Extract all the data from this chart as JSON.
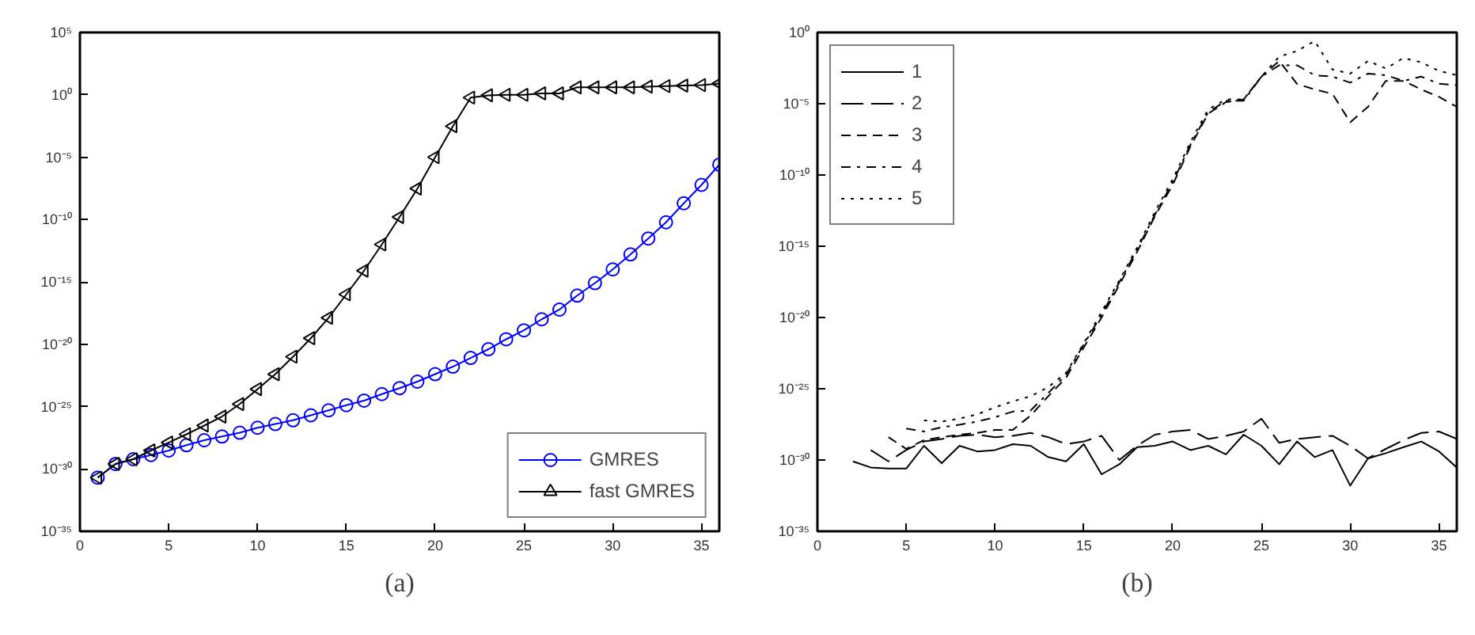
{
  "chart_data": [
    {
      "type": "line",
      "xlabel": "(a)",
      "log": "y",
      "grid": false,
      "legend": "bottom right",
      "xlim": [
        0,
        36
      ],
      "ylim": [
        1e-35,
        100000
      ],
      "xticks": [
        0,
        5,
        10,
        15,
        20,
        25,
        30,
        35
      ],
      "yticks": [
        {
          "value": 1e-35,
          "label": "10⁻³⁵"
        },
        {
          "value": 1e-30,
          "label": "10⁻³⁰"
        },
        {
          "value": 1e-25,
          "label": "10⁻²⁵"
        },
        {
          "value": 1e-20,
          "label": "10⁻²⁰"
        },
        {
          "value": 1e-15,
          "label": "10⁻¹⁵"
        },
        {
          "value": 1e-10,
          "label": "10⁻¹⁰"
        },
        {
          "value": 1e-05,
          "label": "10⁻⁵"
        },
        {
          "value": 1,
          "label": "10⁰"
        },
        {
          "value": 100000,
          "label": "10⁵"
        }
      ],
      "x": [
        1,
        2,
        3,
        4,
        5,
        6,
        7,
        8,
        9,
        10,
        11,
        12,
        13,
        14,
        15,
        16,
        17,
        18,
        19,
        20,
        21,
        22,
        23,
        24,
        25,
        26,
        27,
        28,
        29,
        30,
        31,
        32,
        33,
        34,
        35,
        36
      ],
      "series": [
        {
          "name": "GMRES",
          "color": "#0000ff",
          "marker": "circle",
          "line_style": "solid",
          "values": [
            2e-31,
            2.5e-30,
            6e-30,
            1.3e-29,
            3e-29,
            8e-29,
            2e-28,
            4e-28,
            8e-28,
            2e-27,
            4e-27,
            8e-27,
            2e-26,
            5e-26,
            1.3e-25,
            3e-25,
            1e-24,
            3e-24,
            1e-23,
            4e-23,
            1.6e-22,
            8e-22,
            4e-21,
            2.5e-20,
            1.3e-19,
            1e-18,
            6e-18,
            8e-17,
            8e-16,
            1e-14,
            1.6e-13,
            3e-12,
            6e-11,
            2e-09,
            6e-08,
            2.5e-06
          ]
        },
        {
          "name": "fast GMRES",
          "color": "#000000",
          "marker": "triangle",
          "line_style": "solid",
          "values": [
            2e-31,
            2.5e-30,
            6e-30,
            3e-29,
            1.3e-28,
            6e-28,
            3e-27,
            1.6e-26,
            1.6e-25,
            2.5e-24,
            4e-23,
            1e-21,
            3e-20,
            1.3e-18,
            1e-16,
            8e-15,
            1e-12,
            1.6e-10,
            3e-08,
            1e-05,
            0.003,
            0.6,
            0.9,
            1,
            1,
            1.3,
            1.3,
            4,
            4,
            4,
            4,
            4.5,
            5,
            5.5,
            6,
            8
          ]
        }
      ]
    },
    {
      "type": "line",
      "xlabel": "(b)",
      "log": "y",
      "grid": false,
      "legend": "top left",
      "xlim": [
        0,
        36
      ],
      "ylim": [
        1e-35,
        1
      ],
      "xticks": [
        0,
        5,
        10,
        15,
        20,
        25,
        30,
        35
      ],
      "yticks": [
        {
          "value": 1e-35,
          "label": "10⁻³⁵"
        },
        {
          "value": 1e-30,
          "label": "10⁻³⁰"
        },
        {
          "value": 1e-25,
          "label": "10⁻²⁵"
        },
        {
          "value": 1e-20,
          "label": "10⁻²⁰"
        },
        {
          "value": 1e-15,
          "label": "10⁻¹⁵"
        },
        {
          "value": 1e-10,
          "label": "10⁻¹⁰"
        },
        {
          "value": 1e-05,
          "label": "10⁻⁵"
        },
        {
          "value": 1,
          "label": "10⁰"
        }
      ],
      "series": [
        {
          "name": "1",
          "color": "#000000",
          "line_style": "solid",
          "x": [
            2,
            3,
            4,
            5,
            6,
            7,
            8,
            9,
            10,
            11,
            12,
            13,
            14,
            15,
            16,
            17,
            18,
            19,
            20,
            21,
            22,
            23,
            24,
            25,
            26,
            27,
            28,
            29,
            30,
            31,
            32,
            33,
            34,
            35,
            36
          ],
          "values": [
            8e-31,
            3e-31,
            2.5e-31,
            2.5e-31,
            1e-29,
            6e-31,
            1e-29,
            4e-30,
            5e-30,
            1.3e-29,
            1e-29,
            1.6e-30,
            8e-31,
            1.3e-29,
            1e-31,
            5e-31,
            8e-30,
            1e-29,
            2e-29,
            5e-30,
            1e-29,
            2.5e-30,
            6e-29,
            1e-29,
            5e-31,
            2e-29,
            1.6e-30,
            5e-30,
            1.6e-32,
            1.3e-30,
            3e-30,
            8e-30,
            2e-29,
            4e-30,
            3e-31
          ]
        },
        {
          "name": "2",
          "color": "#000000",
          "line_style": "longdash",
          "x": [
            3,
            4,
            5,
            6,
            7,
            8,
            9,
            10,
            11,
            12,
            13,
            14,
            15,
            16,
            17,
            18,
            19,
            20,
            21,
            22,
            23,
            24,
            25,
            26,
            27,
            28,
            29,
            30,
            31,
            32,
            33,
            34,
            35,
            36
          ],
          "values": [
            5e-30,
            8e-31,
            5e-30,
            2e-29,
            3e-29,
            5e-29,
            6e-29,
            4e-29,
            5e-29,
            8e-29,
            4e-29,
            1.3e-29,
            2e-29,
            5e-29,
            1e-30,
            1e-29,
            6e-29,
            1e-28,
            1.3e-28,
            3e-29,
            5e-29,
            1e-28,
            8e-28,
            1.6e-29,
            3e-29,
            4e-29,
            5e-29,
            1e-29,
            1.3e-30,
            6e-30,
            2.5e-29,
            8e-29,
            1e-28,
            3e-29
          ]
        },
        {
          "name": "3",
          "color": "#000000",
          "line_style": "dashed",
          "x": [
            4,
            5,
            6,
            7,
            8,
            9,
            10,
            11,
            12,
            13,
            14,
            15,
            16,
            17,
            18,
            19,
            20,
            21,
            22,
            23,
            24,
            25,
            26,
            27,
            28,
            29,
            30,
            31,
            32,
            33,
            34,
            35,
            36
          ],
          "values": [
            4e-29,
            6e-30,
            2.5e-29,
            4e-29,
            6e-29,
            8e-29,
            1.3e-28,
            1.3e-28,
            1.3e-27,
            3e-26,
            6e-25,
            8e-23,
            1e-20,
            2e-18,
            4e-16,
            1.3e-13,
            2e-11,
            1e-08,
            2e-06,
            1.3e-05,
            2e-05,
            0.0008,
            0.01,
            0.00025,
            0.0001,
            5e-05,
            5e-07,
            6e-06,
            0.0004,
            0.0004,
            0.0001,
            3e-05,
            6e-06
          ]
        },
        {
          "name": "4",
          "color": "#000000",
          "line_style": "dashdot",
          "x": [
            5,
            6,
            7,
            8,
            9,
            10,
            11,
            12,
            13,
            14,
            15,
            16,
            17,
            18,
            19,
            20,
            21,
            22,
            23,
            24,
            25,
            26,
            27,
            28,
            29,
            30,
            31,
            32,
            33,
            34,
            35,
            36
          ],
          "values": [
            1.6e-28,
            1e-28,
            2e-28,
            3e-28,
            5e-28,
            1e-27,
            2.5e-27,
            3e-27,
            5e-26,
            1e-24,
            1.3e-22,
            1.6e-20,
            3e-18,
            6e-16,
            1.6e-13,
            3e-11,
            1.3e-08,
            2.5e-06,
            1.6e-05,
            1.6e-05,
            0.0008,
            0.005,
            0.005,
            0.001,
            0.0008,
            0.0003,
            0.0013,
            0.001,
            0.0004,
            0.0008,
            0.00025,
            0.0002
          ]
        },
        {
          "name": "5",
          "color": "#000000",
          "line_style": "dotted",
          "x": [
            6,
            7,
            8,
            9,
            10,
            11,
            12,
            13,
            14,
            15,
            16,
            17,
            18,
            19,
            20,
            21,
            22,
            23,
            24,
            25,
            26,
            27,
            28,
            29,
            30,
            31,
            32,
            33,
            34,
            35,
            36
          ],
          "values": [
            6e-28,
            5e-28,
            8e-28,
            1.6e-27,
            5e-27,
            1.3e-26,
            3e-26,
            1.3e-25,
            1.3e-24,
            1.6e-22,
            2.5e-20,
            4e-18,
            8e-16,
            2.5e-13,
            5e-11,
            2e-08,
            4e-06,
            2e-05,
            2e-05,
            0.0008,
            0.02,
            0.05,
            0.25,
            0.0025,
            0.0013,
            0.01,
            0.003,
            0.016,
            0.008,
            0.002,
            0.001
          ]
        }
      ]
    }
  ]
}
